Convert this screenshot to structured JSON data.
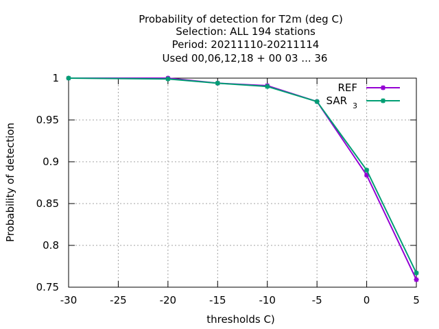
{
  "chart_data": {
    "type": "line",
    "title_lines": [
      "Probability of detection  for T2m (deg C)",
      "Selection: ALL    194 stations",
      "Period: 20211110-20211114",
      "Used  00,06,12,18 + 00 03 ... 36"
    ],
    "xlabel": "thresholds C)",
    "ylabel": "Probability of detection",
    "xlim": [
      -30,
      5
    ],
    "ylim": [
      0.75,
      1.0
    ],
    "x_ticks": [
      -30,
      -25,
      -20,
      -15,
      -10,
      -5,
      0,
      5
    ],
    "x_tick_labels": [
      "-30",
      "-25",
      "-20",
      "-15",
      "-10",
      "-5",
      "0",
      "5"
    ],
    "y_ticks": [
      0.75,
      0.8,
      0.85,
      0.9,
      0.95,
      1.0
    ],
    "y_tick_labels": [
      "0.75",
      "0.8",
      "0.85",
      "0.9",
      "0.95",
      "1"
    ],
    "grid": true,
    "legend_position": "top-right",
    "x": [
      -30,
      -20,
      -15,
      -10,
      -5,
      0,
      5
    ],
    "series": [
      {
        "name": "REF",
        "name_main": "REF",
        "name_sub": "",
        "color": "#9400d3",
        "values": [
          1.0,
          1.0,
          0.994,
          0.991,
          0.972,
          0.884,
          0.759
        ]
      },
      {
        "name": "SAR 3",
        "name_main": "SAR",
        "name_sub": "3",
        "color": "#009e73",
        "values": [
          1.0,
          0.999,
          0.994,
          0.99,
          0.972,
          0.89,
          0.767
        ]
      }
    ]
  }
}
